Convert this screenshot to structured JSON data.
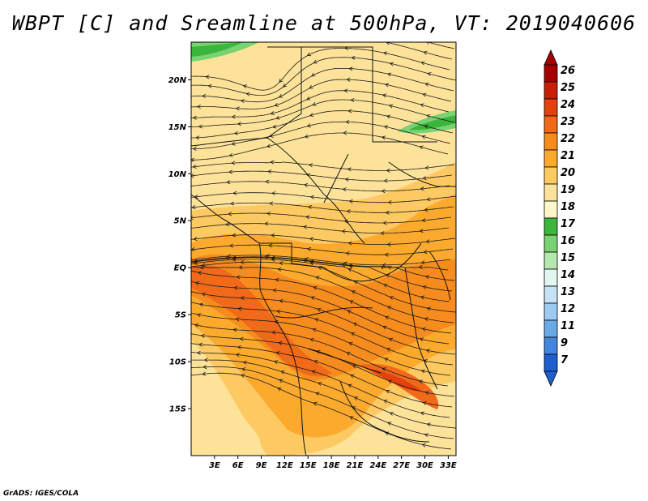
{
  "title": "WBPT [C] and Sreamline at 500hPa, VT: 2019040606",
  "credit": "GrADS: IGES/COLA",
  "map": {
    "lon_range": [
      0,
      34
    ],
    "lat_range": [
      -20,
      24
    ],
    "lat_ticks": [
      {
        "value": 20,
        "label": "20N"
      },
      {
        "value": 15,
        "label": "15N"
      },
      {
        "value": 10,
        "label": "10N"
      },
      {
        "value": 5,
        "label": "5N"
      },
      {
        "value": 0,
        "label": "EQ"
      },
      {
        "value": -5,
        "label": "5S"
      },
      {
        "value": -10,
        "label": "10S"
      },
      {
        "value": -15,
        "label": "15S"
      }
    ],
    "lon_ticks": [
      {
        "value": 3,
        "label": "3E"
      },
      {
        "value": 6,
        "label": "6E"
      },
      {
        "value": 9,
        "label": "9E"
      },
      {
        "value": 12,
        "label": "12E"
      },
      {
        "value": 15,
        "label": "15E"
      },
      {
        "value": 18,
        "label": "18E"
      },
      {
        "value": 21,
        "label": "21E"
      },
      {
        "value": 24,
        "label": "24E"
      },
      {
        "value": 27,
        "label": "27E"
      },
      {
        "value": 30,
        "label": "30E"
      },
      {
        "value": 33,
        "label": "33E"
      }
    ],
    "background_color": "#fde39a"
  },
  "colorbar": {
    "levels": [
      {
        "label": "26",
        "color": "#a50000"
      },
      {
        "label": "25",
        "color": "#c81e08"
      },
      {
        "label": "24",
        "color": "#e3420e"
      },
      {
        "label": "23",
        "color": "#f06a1a"
      },
      {
        "label": "22",
        "color": "#f78c1e"
      },
      {
        "label": "21",
        "color": "#fbaa2e"
      },
      {
        "label": "20",
        "color": "#fdc962"
      },
      {
        "label": "19",
        "color": "#fde39a"
      },
      {
        "label": "18",
        "color": "#fef6c8"
      },
      {
        "label": "17",
        "color": "#3bb53b"
      },
      {
        "label": "16",
        "color": "#79d273"
      },
      {
        "label": "15",
        "color": "#b4e8ae"
      },
      {
        "label": "14",
        "color": "#e3f7f2"
      },
      {
        "label": "13",
        "color": "#c6e2f5"
      },
      {
        "label": "12",
        "color": "#9ccaf0"
      },
      {
        "label": "11",
        "color": "#6aa9e8"
      },
      {
        "label": "9",
        "color": "#3f86dc"
      },
      {
        "label": "7",
        "color": "#1f5fcd"
      }
    ],
    "top_arrow_color": "#a50000",
    "bottom_arrow_color": "#1f5fcd"
  }
}
